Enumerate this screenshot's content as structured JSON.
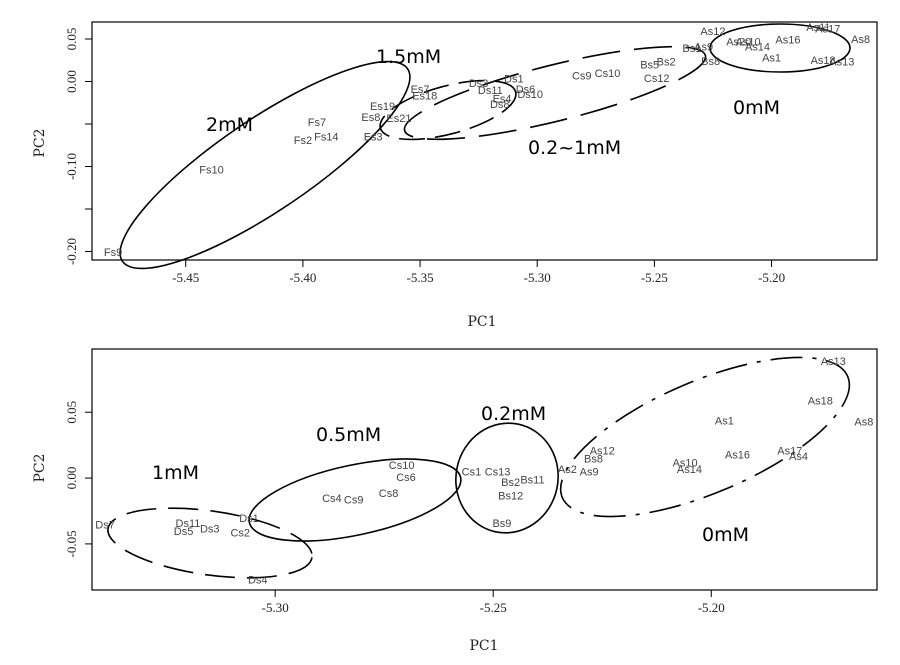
{
  "chart_data": [
    {
      "type": "scatter",
      "xlabel": "PC1",
      "ylabel": "PC2",
      "xlim": [
        -5.49,
        -5.155
      ],
      "ylim": [
        -0.21,
        0.07
      ],
      "xticks": [
        -5.45,
        -5.4,
        -5.35,
        -5.3,
        -5.25,
        -5.2
      ],
      "xtick_labels": [
        "-5.45",
        "-5.40",
        "-5.35",
        "-5.30",
        "-5.25",
        "-5.20"
      ],
      "yticks": [
        0.05,
        0.0,
        -0.05,
        -0.1,
        -0.15,
        -0.2
      ],
      "ytick_labels": [
        "0.05",
        "0.00",
        "",
        "-0.10",
        "",
        "-0.20"
      ],
      "points": [
        {
          "label": "As12",
          "x": -5.225,
          "y": 0.058
        },
        {
          "label": "As9",
          "x": -5.229,
          "y": 0.04
        },
        {
          "label": "As10",
          "x": -5.21,
          "y": 0.046
        },
        {
          "label": "As20",
          "x": -5.214,
          "y": 0.046
        },
        {
          "label": "As14",
          "x": -5.206,
          "y": 0.04
        },
        {
          "label": "As16",
          "x": -5.193,
          "y": 0.048
        },
        {
          "label": "As11",
          "x": -5.18,
          "y": 0.063
        },
        {
          "label": "As17",
          "x": -5.176,
          "y": 0.061
        },
        {
          "label": "As8",
          "x": -5.162,
          "y": 0.049
        },
        {
          "label": "As1",
          "x": -5.2,
          "y": 0.027
        },
        {
          "label": "As18",
          "x": -5.178,
          "y": 0.024
        },
        {
          "label": "As13",
          "x": -5.17,
          "y": 0.022
        },
        {
          "label": "Bs1",
          "x": -5.234,
          "y": 0.038
        },
        {
          "label": "Bs8",
          "x": -5.226,
          "y": 0.023
        },
        {
          "label": "Bs5",
          "x": -5.252,
          "y": 0.019
        },
        {
          "label": "Bs2",
          "x": -5.245,
          "y": 0.022
        },
        {
          "label": "Cs9",
          "x": -5.281,
          "y": 0.006
        },
        {
          "label": "Cs10",
          "x": -5.27,
          "y": 0.009
        },
        {
          "label": "Cs12",
          "x": -5.249,
          "y": 0.003
        },
        {
          "label": "Ds3",
          "x": -5.325,
          "y": -0.003
        },
        {
          "label": "Ds1",
          "x": -5.31,
          "y": 0.002
        },
        {
          "label": "Ds11",
          "x": -5.32,
          "y": -0.011
        },
        {
          "label": "Ds6",
          "x": -5.305,
          "y": -0.01
        },
        {
          "label": "Ds10",
          "x": -5.303,
          "y": -0.016
        },
        {
          "label": "Ds8",
          "x": -5.316,
          "y": -0.028
        },
        {
          "label": "Es4",
          "x": -5.315,
          "y": -0.021
        },
        {
          "label": "Es7",
          "x": -5.35,
          "y": -0.01
        },
        {
          "label": "Es18",
          "x": -5.348,
          "y": -0.018
        },
        {
          "label": "Es19",
          "x": -5.366,
          "y": -0.03
        },
        {
          "label": "Es8",
          "x": -5.371,
          "y": -0.043
        },
        {
          "label": "Es21",
          "x": -5.359,
          "y": -0.044
        },
        {
          "label": "Es3",
          "x": -5.37,
          "y": -0.066
        },
        {
          "label": "Fs7",
          "x": -5.394,
          "y": -0.049
        },
        {
          "label": "Fs2",
          "x": -5.4,
          "y": -0.07
        },
        {
          "label": "Fs14",
          "x": -5.39,
          "y": -0.066
        },
        {
          "label": "Fs10",
          "x": -5.439,
          "y": -0.105
        },
        {
          "label": "Fs9",
          "x": -5.481,
          "y": -0.202
        }
      ],
      "groups": [
        {
          "label": "2mM"
        },
        {
          "label": "1.5mM"
        },
        {
          "label": "0.2~1mM"
        },
        {
          "label": "0mM"
        }
      ]
    },
    {
      "type": "scatter",
      "xlabel": "PC1",
      "ylabel": "PC2",
      "xlim": [
        -5.342,
        -5.162
      ],
      "ylim": [
        -0.085,
        0.098
      ],
      "xticks": [
        -5.3,
        -5.25,
        -5.2
      ],
      "xtick_labels": [
        "-5.30",
        "-5.25",
        "-5.20"
      ],
      "yticks": [
        0.05,
        0.0,
        -0.05
      ],
      "ytick_labels": [
        "0.05",
        "0.00",
        "-0.05"
      ],
      "points": [
        {
          "label": "As13",
          "x": -5.172,
          "y": 0.088
        },
        {
          "label": "As18",
          "x": -5.175,
          "y": 0.058
        },
        {
          "label": "As1",
          "x": -5.197,
          "y": 0.043
        },
        {
          "label": "As8",
          "x": -5.165,
          "y": 0.042
        },
        {
          "label": "As12",
          "x": -5.225,
          "y": 0.02
        },
        {
          "label": "As16",
          "x": -5.194,
          "y": 0.017
        },
        {
          "label": "As17",
          "x": -5.182,
          "y": 0.02
        },
        {
          "label": "As4",
          "x": -5.18,
          "y": 0.016
        },
        {
          "label": "As10",
          "x": -5.206,
          "y": 0.011
        },
        {
          "label": "As14",
          "x": -5.205,
          "y": 0.006
        },
        {
          "label": "As2",
          "x": -5.233,
          "y": 0.006
        },
        {
          "label": "As9",
          "x": -5.228,
          "y": 0.004
        },
        {
          "label": "Bs8",
          "x": -5.227,
          "y": 0.014
        },
        {
          "label": "Bs11",
          "x": -5.241,
          "y": -0.002
        },
        {
          "label": "Bs2",
          "x": -5.246,
          "y": -0.004
        },
        {
          "label": "Bs12",
          "x": -5.246,
          "y": -0.014
        },
        {
          "label": "Bs9",
          "x": -5.248,
          "y": -0.035
        },
        {
          "label": "Cs13",
          "x": -5.249,
          "y": 0.004
        },
        {
          "label": "Cs1",
          "x": -5.255,
          "y": 0.004
        },
        {
          "label": "Cs10",
          "x": -5.271,
          "y": 0.009
        },
        {
          "label": "Cs6",
          "x": -5.27,
          "y": 0.0
        },
        {
          "label": "Cs8",
          "x": -5.274,
          "y": -0.012
        },
        {
          "label": "Cs4",
          "x": -5.287,
          "y": -0.016
        },
        {
          "label": "Cs9",
          "x": -5.282,
          "y": -0.017
        },
        {
          "label": "Cs2",
          "x": -5.308,
          "y": -0.042
        },
        {
          "label": "Ds7",
          "x": -5.339,
          "y": -0.036
        },
        {
          "label": "Ds11",
          "x": -5.32,
          "y": -0.035
        },
        {
          "label": "Ds5",
          "x": -5.321,
          "y": -0.041
        },
        {
          "label": "Ds3",
          "x": -5.315,
          "y": -0.039
        },
        {
          "label": "Ds1",
          "x": -5.306,
          "y": -0.031
        },
        {
          "label": "Ds4",
          "x": -5.304,
          "y": -0.078
        }
      ],
      "groups": [
        {
          "label": "1mM"
        },
        {
          "label": "0.5mM"
        },
        {
          "label": "0.2mM"
        },
        {
          "label": "0mM"
        }
      ]
    }
  ]
}
